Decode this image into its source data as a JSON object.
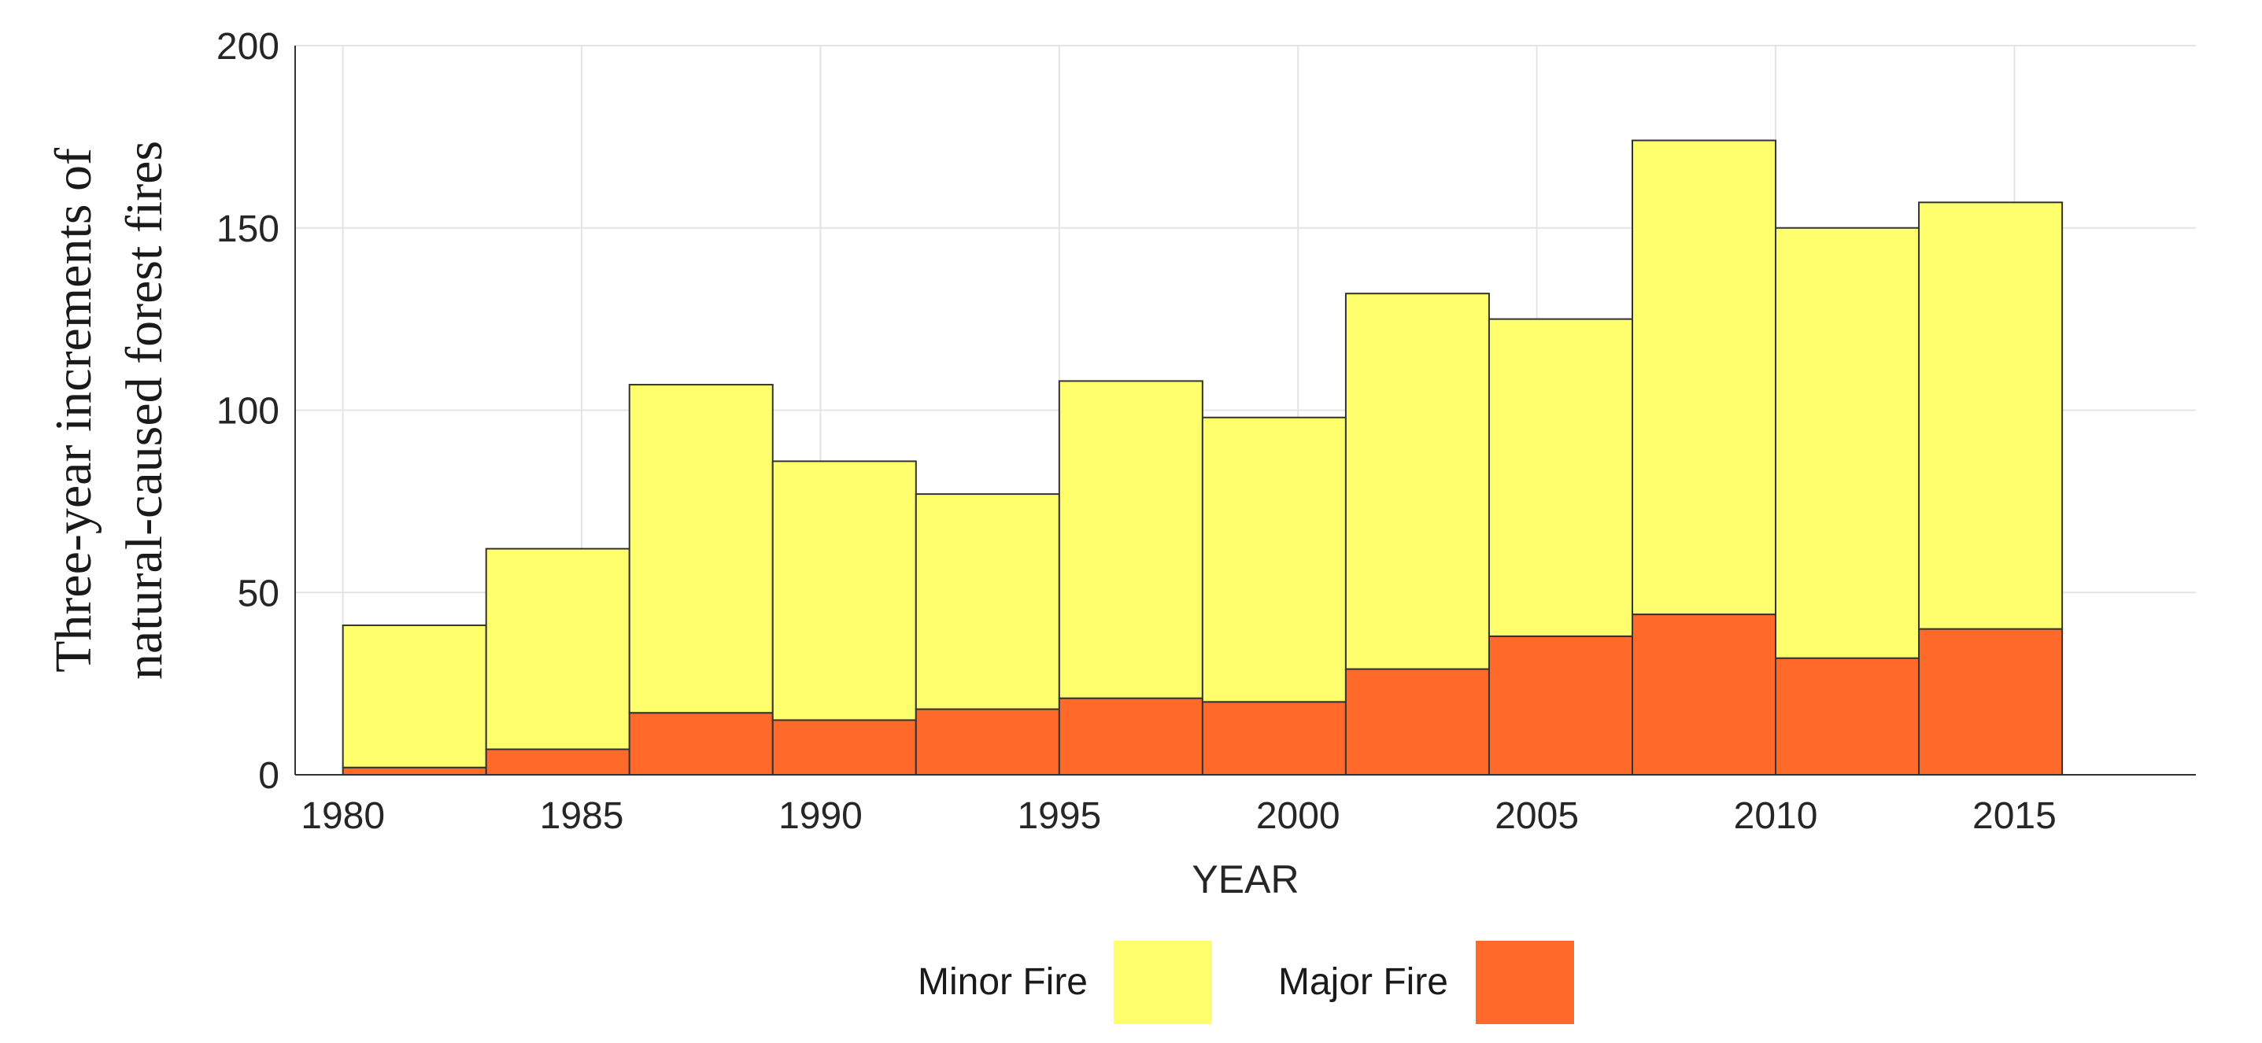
{
  "chart_data": {
    "type": "bar",
    "stacked": true,
    "x": [
      1980,
      1983,
      1986,
      1989,
      1992,
      1995,
      1998,
      2001,
      2004,
      2007,
      2010,
      2013
    ],
    "bin_width": 3,
    "series": [
      {
        "name": "Major Fire",
        "color": "#ff6a2a",
        "values": [
          2,
          7,
          17,
          15,
          18,
          21,
          20,
          29,
          38,
          44,
          32,
          40
        ]
      },
      {
        "name": "Minor Fire",
        "color": "#ffff6e",
        "values": [
          39,
          55,
          90,
          71,
          59,
          87,
          78,
          103,
          87,
          130,
          118,
          117
        ]
      }
    ],
    "xlabel": "YEAR",
    "ylabel_lines": [
      "Three-year increments of",
      "natural-caused forest fires"
    ],
    "xlim": [
      1979,
      2018.8
    ],
    "ylim": [
      0,
      200
    ],
    "x_ticks": [
      "1980",
      "1985",
      "1990",
      "1995",
      "2000",
      "2005",
      "2010",
      "2015"
    ],
    "y_ticks": [
      "0",
      "50",
      "100",
      "150",
      "200"
    ],
    "grid": true,
    "legend": {
      "placement": "bottom",
      "entries": [
        {
          "label": "Minor Fire",
          "color": "#ffff6e"
        },
        {
          "label": "Major Fire",
          "color": "#ff6a2a"
        }
      ]
    }
  }
}
